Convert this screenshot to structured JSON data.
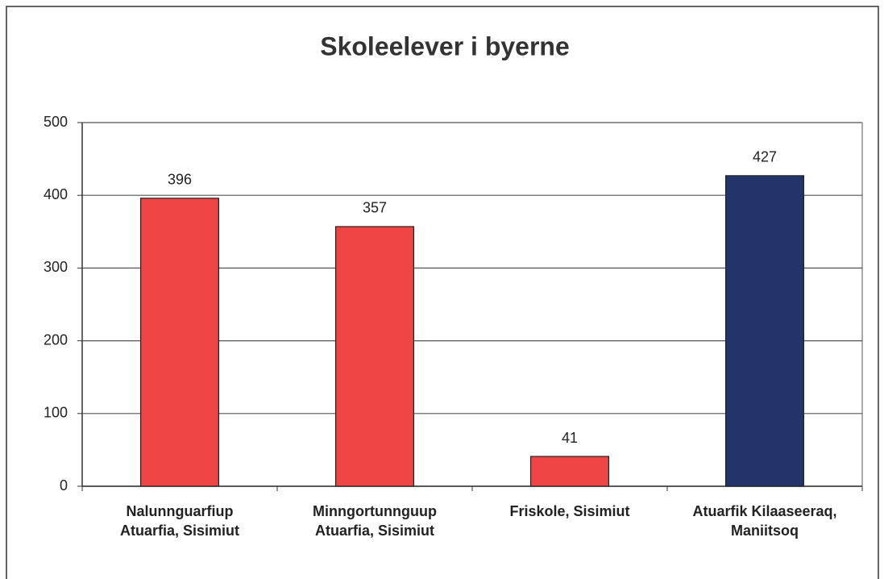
{
  "chart_data": {
    "type": "bar",
    "title": "Skoleelever i byerne",
    "categories": [
      [
        "Nalunnguarfiup",
        "Atuarfia, Sisimiut"
      ],
      [
        "Minngortunnguup",
        "Atuarfia, Sisimiut"
      ],
      [
        "Friskole, Sisimiut"
      ],
      [
        "Atuarfik Kilaaseeraq,",
        "Maniitsoq"
      ]
    ],
    "values": [
      396,
      357,
      41,
      427
    ],
    "colors": [
      "#f04545",
      "#f04545",
      "#f04545",
      "#23346b"
    ],
    "ylim": [
      0,
      500
    ],
    "yticks": [
      0,
      100,
      200,
      300,
      400,
      500
    ],
    "grid": true
  }
}
